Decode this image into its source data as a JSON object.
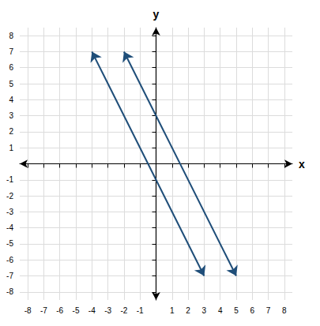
{
  "chart_data": {
    "type": "line",
    "xlabel": "x",
    "ylabel": "y",
    "series": [
      {
        "x": [
          -4,
          3
        ],
        "values": [
          7,
          -7
        ],
        "color": "#1f4e79",
        "marker": "arrow"
      },
      {
        "x": [
          -2,
          5
        ],
        "values": [
          7,
          -7
        ],
        "color": "#1f4e79",
        "marker": "arrow"
      }
    ],
    "xlim": [
      -8.5,
      8.5
    ],
    "ylim": [
      -8.5,
      8.5
    ],
    "xticks": [
      -8,
      -7,
      -6,
      -5,
      -4,
      -3,
      -2,
      -1,
      1,
      2,
      3,
      4,
      5,
      6,
      7,
      8
    ],
    "yticks": [
      -8,
      -7,
      -6,
      -5,
      -4,
      -3,
      -2,
      -1,
      1,
      2,
      3,
      4,
      5,
      6,
      7,
      8
    ],
    "grid": true
  }
}
